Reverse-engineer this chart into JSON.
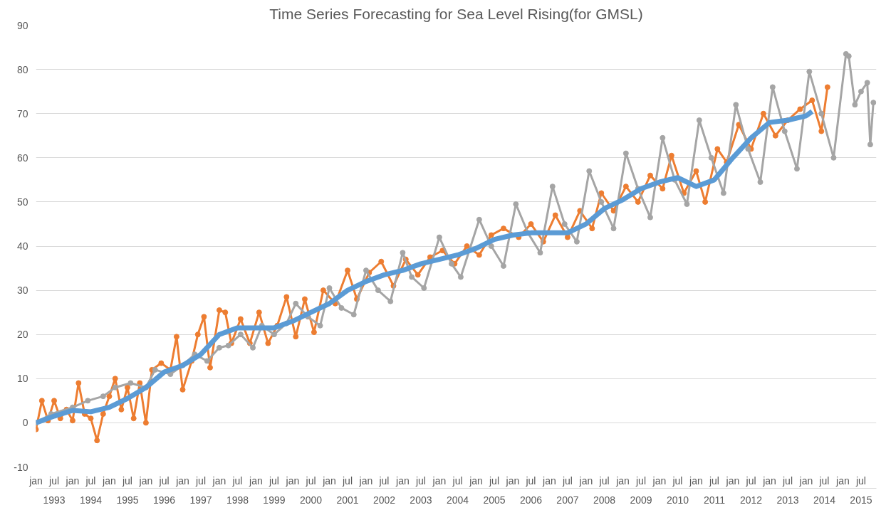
{
  "chart_data": {
    "type": "line",
    "title": "Time Series Forecasting for Sea Level Rising(for GMSL)",
    "xlim": [
      "1993-01",
      "2015-12"
    ],
    "xticks": [
      {
        "value": "1993-01",
        "label": "jan"
      },
      {
        "value": "1993-07",
        "label": "jul"
      },
      {
        "value": "1994-01",
        "label": "jan"
      },
      {
        "value": "1994-07",
        "label": "jul"
      },
      {
        "value": "1995-01",
        "label": "jan"
      },
      {
        "value": "1995-07",
        "label": "jul"
      },
      {
        "value": "1996-01",
        "label": "jan"
      },
      {
        "value": "1996-07",
        "label": "jul"
      },
      {
        "value": "1997-01",
        "label": "jan"
      },
      {
        "value": "1997-07",
        "label": "jul"
      },
      {
        "value": "1998-01",
        "label": "jan"
      },
      {
        "value": "1998-07",
        "label": "jul"
      },
      {
        "value": "1999-01",
        "label": "jan"
      },
      {
        "value": "1999-07",
        "label": "jul"
      },
      {
        "value": "2000-01",
        "label": "jan"
      },
      {
        "value": "2000-07",
        "label": "jul"
      },
      {
        "value": "2001-01",
        "label": "jan"
      },
      {
        "value": "2001-07",
        "label": "jul"
      },
      {
        "value": "2002-01",
        "label": "jan"
      },
      {
        "value": "2002-07",
        "label": "jul"
      },
      {
        "value": "2003-01",
        "label": "jan"
      },
      {
        "value": "2003-07",
        "label": "jul"
      },
      {
        "value": "2004-01",
        "label": "jan"
      },
      {
        "value": "2004-07",
        "label": "jul"
      },
      {
        "value": "2005-01",
        "label": "jan"
      },
      {
        "value": "2005-07",
        "label": "jul"
      },
      {
        "value": "2006-01",
        "label": "jan"
      },
      {
        "value": "2006-07",
        "label": "jul"
      },
      {
        "value": "2007-01",
        "label": "jan"
      },
      {
        "value": "2007-07",
        "label": "jul"
      },
      {
        "value": "2008-01",
        "label": "jan"
      },
      {
        "value": "2008-07",
        "label": "jul"
      },
      {
        "value": "2009-01",
        "label": "jan"
      },
      {
        "value": "2009-07",
        "label": "jul"
      },
      {
        "value": "2010-01",
        "label": "jan"
      },
      {
        "value": "2010-07",
        "label": "jul"
      },
      {
        "value": "2011-01",
        "label": "jan"
      },
      {
        "value": "2011-07",
        "label": "jul"
      },
      {
        "value": "2012-01",
        "label": "jan"
      },
      {
        "value": "2012-07",
        "label": "jul"
      },
      {
        "value": "2013-01",
        "label": "jan"
      },
      {
        "value": "2013-07",
        "label": "jul"
      },
      {
        "value": "2014-01",
        "label": "jan"
      },
      {
        "value": "2014-07",
        "label": "jul"
      },
      {
        "value": "2015-01",
        "label": "jan"
      },
      {
        "value": "2015-07",
        "label": "jul"
      }
    ],
    "x2lim": [
      "1993-01",
      "2015-12"
    ],
    "x2ticks": [
      {
        "value": "1993-07",
        "label": "1993"
      },
      {
        "value": "1994-07",
        "label": "1994"
      },
      {
        "value": "1995-07",
        "label": "1995"
      },
      {
        "value": "1996-07",
        "label": "1996"
      },
      {
        "value": "1997-07",
        "label": "1997"
      },
      {
        "value": "1998-07",
        "label": "1998"
      },
      {
        "value": "1999-07",
        "label": "1999"
      },
      {
        "value": "2000-07",
        "label": "2000"
      },
      {
        "value": "2001-07",
        "label": "2001"
      },
      {
        "value": "2002-07",
        "label": "2002"
      },
      {
        "value": "2003-07",
        "label": "2003"
      },
      {
        "value": "2004-07",
        "label": "2004"
      },
      {
        "value": "2005-07",
        "label": "2005"
      },
      {
        "value": "2006-07",
        "label": "2006"
      },
      {
        "value": "2007-07",
        "label": "2007"
      },
      {
        "value": "2008-07",
        "label": "2008"
      },
      {
        "value": "2009-07",
        "label": "2009"
      },
      {
        "value": "2010-07",
        "label": "2010"
      },
      {
        "value": "2011-07",
        "label": "2011"
      },
      {
        "value": "2012-07",
        "label": "2012"
      },
      {
        "value": "2013-07",
        "label": "2013"
      },
      {
        "value": "2014-07",
        "label": "2014"
      },
      {
        "value": "2015-07",
        "label": "2015"
      }
    ],
    "ylim": [
      -10,
      90
    ],
    "yticks": [
      -10,
      0,
      10,
      20,
      30,
      40,
      50,
      60,
      70,
      80,
      90
    ],
    "grid": "y",
    "marker": "circle",
    "series": [
      {
        "color": "#ed7d31",
        "x": [
          "1993-01",
          "1993-03",
          "1993-05",
          "1993-07",
          "1993-09",
          "1993-11",
          "1994-01",
          "1994-03",
          "1994-05",
          "1994-07",
          "1994-09",
          "1994-11",
          "1995-01",
          "1995-03",
          "1995-05",
          "1995-07",
          "1995-09",
          "1995-11",
          "1996-01",
          "1996-03",
          "1996-06",
          "1996-09",
          "1996-11",
          "1997-01",
          "1997-04",
          "1997-06",
          "1997-08",
          "1997-10",
          "1998-01",
          "1998-03",
          "1998-05",
          "1998-08",
          "1998-11",
          "1999-02",
          "1999-05",
          "1999-08",
          "1999-11",
          "2000-02",
          "2000-05",
          "2000-08",
          "2000-11",
          "2001-03",
          "2001-07",
          "2001-10",
          "2002-02",
          "2002-06",
          "2002-10",
          "2003-02",
          "2003-06",
          "2003-10",
          "2004-02",
          "2004-06",
          "2004-10",
          "2005-02",
          "2005-06",
          "2005-10",
          "2006-03",
          "2006-07",
          "2006-11",
          "2007-03",
          "2007-07",
          "2007-11",
          "2008-03",
          "2008-06",
          "2008-10",
          "2009-02",
          "2009-06",
          "2009-10",
          "2010-02",
          "2010-05",
          "2010-09",
          "2011-01",
          "2011-04",
          "2011-08",
          "2011-11",
          "2012-03",
          "2012-07",
          "2012-11",
          "2013-03",
          "2013-07",
          "2013-11",
          "2014-03",
          "2014-06",
          "2014-08"
        ],
        "values": [
          -1.5,
          5,
          0.5,
          5,
          1,
          3,
          0.5,
          9,
          2,
          1,
          -4,
          2,
          6,
          10,
          3,
          8,
          1,
          9,
          0,
          12,
          13.5,
          12,
          19.5,
          7.5,
          14,
          20,
          24,
          12.5,
          25.5,
          25,
          18,
          23.5,
          18,
          25,
          18,
          22,
          28.5,
          19.5,
          28,
          20.5,
          30,
          27,
          34.5,
          28,
          34,
          36.5,
          31,
          37,
          33.5,
          37.5,
          39,
          36,
          40,
          38,
          42.5,
          44,
          42,
          45,
          41,
          47,
          42,
          48,
          44,
          52,
          48,
          53.5,
          50,
          56,
          53,
          60.5,
          52,
          57,
          50,
          62,
          59,
          67.5,
          62,
          70,
          65,
          68.5,
          71,
          73,
          66,
          76
        ]
      },
      {
        "color": "#a5a5a5",
        "x": [
          "1993-01",
          "1993-06",
          "1994-01",
          "1994-06",
          "1994-11",
          "1995-03",
          "1995-08",
          "1996-01",
          "1996-04",
          "1996-09",
          "1997-01",
          "1997-05",
          "1997-09",
          "1998-01",
          "1998-04",
          "1998-08",
          "1998-12",
          "1999-03",
          "1999-07",
          "1999-11",
          "2000-02",
          "2000-06",
          "2000-10",
          "2001-01",
          "2001-05",
          "2001-09",
          "2002-01",
          "2002-05",
          "2002-09",
          "2003-01",
          "2003-04",
          "2003-08",
          "2004-01",
          "2004-05",
          "2004-08",
          "2005-02",
          "2005-06",
          "2005-10",
          "2006-02",
          "2006-06",
          "2006-10",
          "2007-02",
          "2007-06",
          "2007-10",
          "2008-02",
          "2008-06",
          "2008-10",
          "2009-02",
          "2009-06",
          "2009-10",
          "2010-02",
          "2010-06",
          "2010-10",
          "2011-02",
          "2011-06",
          "2011-10",
          "2012-02",
          "2012-06",
          "2012-10",
          "2013-02",
          "2013-06",
          "2013-10",
          "2014-02",
          "2014-06",
          "2014-10",
          "2015-02",
          "2015-03",
          "2015-05",
          "2015-07",
          "2015-09",
          "2015-10",
          "2015-11"
        ],
        "values": [
          0,
          2,
          3.5,
          5,
          6,
          8,
          9,
          8,
          12,
          11,
          13,
          15.5,
          14,
          17,
          17.5,
          20,
          17,
          22,
          20,
          22.5,
          27,
          24,
          22,
          30.5,
          26,
          24.5,
          34.5,
          30,
          27.5,
          38.5,
          33,
          30.5,
          42,
          36,
          33,
          46,
          40,
          35.5,
          49.5,
          43,
          38.5,
          53.5,
          45,
          41,
          57,
          50,
          44,
          61,
          53,
          46.5,
          64.5,
          55,
          49.5,
          68.5,
          60,
          52,
          72,
          62,
          54.5,
          76,
          66,
          57.5,
          79.5,
          70,
          60,
          83.5,
          83,
          72,
          75,
          77,
          63,
          72.5
        ]
      },
      {
        "color": "#5b9bd5",
        "marker": "none",
        "x": [
          "1993-01",
          "1993-07",
          "1994-01",
          "1994-07",
          "1995-01",
          "1995-07",
          "1996-01",
          "1996-07",
          "1997-01",
          "1997-07",
          "1998-01",
          "1998-07",
          "1999-01",
          "1999-07",
          "2000-01",
          "2000-07",
          "2001-01",
          "2001-07",
          "2002-01",
          "2002-07",
          "2003-01",
          "2003-07",
          "2004-01",
          "2004-07",
          "2005-01",
          "2005-07",
          "2006-01",
          "2006-07",
          "2007-01",
          "2007-07",
          "2008-01",
          "2008-07",
          "2009-01",
          "2009-07",
          "2010-01",
          "2010-07",
          "2011-01",
          "2011-07",
          "2012-01",
          "2012-07",
          "2013-01",
          "2013-07",
          "2014-01",
          "2014-03"
        ],
        "values": [
          0,
          1.5,
          2.8,
          2.5,
          3.5,
          5.5,
          8,
          11.5,
          13,
          15.5,
          20,
          21.5,
          21.5,
          21.5,
          23,
          25,
          27,
          30,
          32,
          33.5,
          34.5,
          36,
          37,
          38,
          39.5,
          41.5,
          42.5,
          43,
          43,
          43,
          45,
          48.5,
          50.5,
          53,
          54.5,
          55.5,
          53.5,
          55,
          60,
          64.5,
          68,
          68.5,
          69.5,
          70.5
        ]
      }
    ]
  }
}
